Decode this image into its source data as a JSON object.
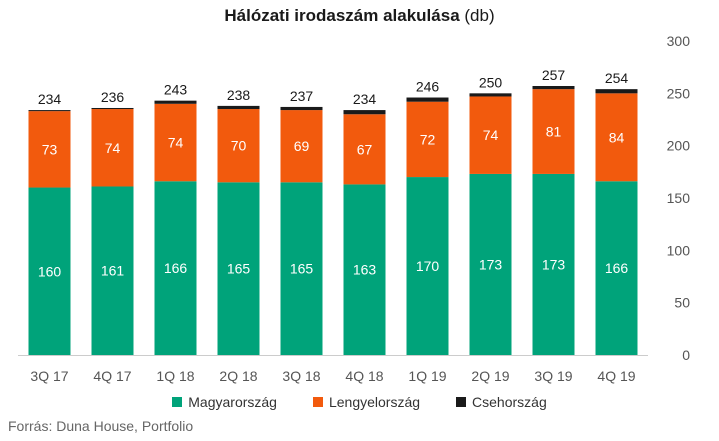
{
  "chart_data": {
    "type": "bar",
    "stacked": true,
    "title": "Hálózati irodaszám alakulása",
    "title_unit": "(db)",
    "categories": [
      "3Q 17",
      "4Q 17",
      "1Q 18",
      "2Q 18",
      "3Q 18",
      "4Q 18",
      "1Q 19",
      "2Q 19",
      "3Q 19",
      "4Q 19"
    ],
    "series": [
      {
        "name": "Magyarország",
        "color": "#00a37a",
        "values": [
          160,
          161,
          166,
          165,
          165,
          163,
          170,
          173,
          173,
          166
        ]
      },
      {
        "name": "Lengyelország",
        "color": "#f25a0d",
        "values": [
          73,
          74,
          74,
          70,
          69,
          67,
          72,
          74,
          81,
          84
        ]
      },
      {
        "name": "Csehország",
        "color": "#1a1a1a",
        "values": [
          1,
          1,
          3,
          3,
          3,
          4,
          4,
          3,
          3,
          4
        ]
      }
    ],
    "totals": [
      234,
      236,
      243,
      238,
      237,
      234,
      246,
      250,
      257,
      254
    ],
    "ylim": [
      0,
      300
    ],
    "yticks": [
      0,
      50,
      100,
      150,
      200,
      250,
      300
    ],
    "y_axis_position": "right",
    "grid": false,
    "legend_position": "bottom"
  },
  "source": "Forrás: Duna House, Portfolio"
}
